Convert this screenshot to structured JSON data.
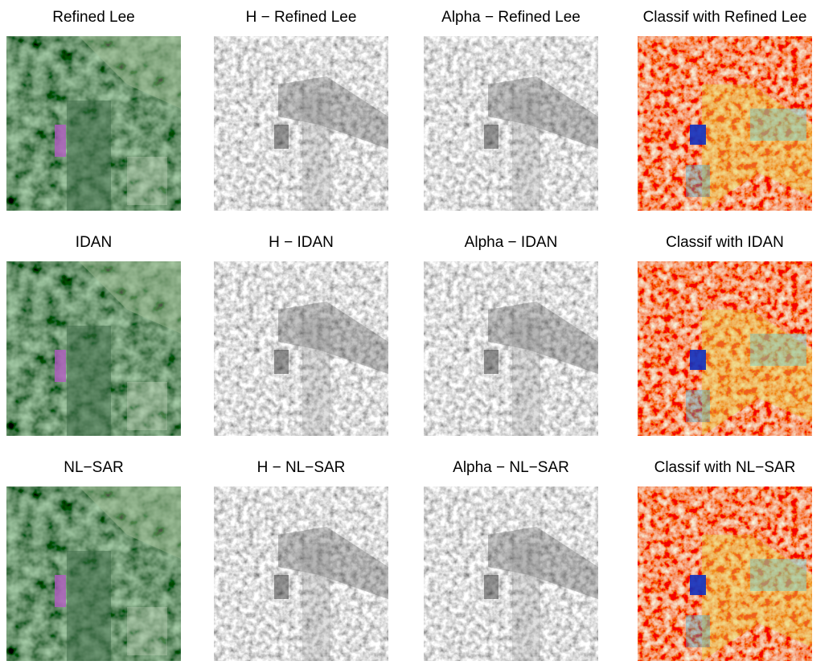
{
  "figure": {
    "panels": [
      {
        "title": "Refined Lee"
      },
      {
        "title": "H − Refined Lee"
      },
      {
        "title": "Alpha − Refined Lee"
      },
      {
        "title": "Classif with Refined Lee"
      },
      {
        "title": "IDAN"
      },
      {
        "title": "H − IDAN"
      },
      {
        "title": "Alpha − IDAN"
      },
      {
        "title": "Classif with IDAN"
      },
      {
        "title": "NL−SAR"
      },
      {
        "title": "H − NL−SAR"
      },
      {
        "title": "Alpha − NL−SAR"
      },
      {
        "title": "Classif with NL−SAR"
      }
    ]
  }
}
